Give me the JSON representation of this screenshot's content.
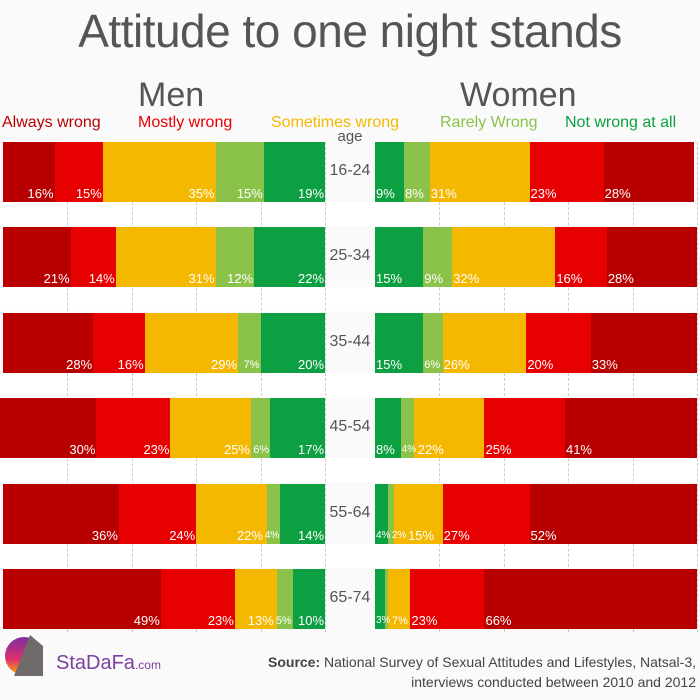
{
  "title": "Attitude to one night stands",
  "men_label": "Men",
  "women_label": "Women",
  "legend": [
    {
      "label": "Always wrong",
      "color": "#b80000"
    },
    {
      "label": "Mostly wrong",
      "color": "#e60000"
    },
    {
      "label": "Sometimes wrong",
      "color": "#f5b800"
    },
    {
      "label": "Rarely Wrong",
      "color": "#8bc34a"
    },
    {
      "label": "Not wrong at all",
      "color": "#0da042"
    }
  ],
  "age_header": "age",
  "logo": {
    "name": "StaDaFa",
    "suffix": ".com"
  },
  "source": {
    "label": "Source:",
    "line1": " National Survey of Sexual Attitudes and Lifestyles, Natsal-3,",
    "line2": "interviews conducted between 2010 and 2012"
  },
  "chart_data": {
    "type": "bar",
    "orientation": "horizontal",
    "stacked": true,
    "title": "Attitude to one night stands",
    "categories": [
      "16-24",
      "25-34",
      "35-44",
      "45-54",
      "55-64",
      "65-74"
    ],
    "series_order": [
      "Always wrong",
      "Mostly wrong",
      "Sometimes wrong",
      "Rarely Wrong",
      "Not wrong at all"
    ],
    "men": [
      [
        16,
        15,
        35,
        15,
        19
      ],
      [
        21,
        14,
        31,
        12,
        22
      ],
      [
        28,
        16,
        29,
        7,
        20
      ],
      [
        30,
        23,
        25,
        6,
        17
      ],
      [
        36,
        24,
        22,
        4,
        14
      ],
      [
        49,
        23,
        13,
        5,
        10
      ]
    ],
    "women": [
      [
        28,
        23,
        31,
        8,
        9
      ],
      [
        28,
        16,
        32,
        9,
        15
      ],
      [
        33,
        20,
        26,
        6,
        15
      ],
      [
        41,
        25,
        22,
        4,
        8
      ],
      [
        52,
        27,
        15,
        2,
        4
      ],
      [
        66,
        23,
        7,
        1,
        3
      ]
    ],
    "women_labels_shown": [
      [
        true,
        true,
        true,
        true,
        true
      ],
      [
        true,
        true,
        true,
        true,
        true
      ],
      [
        true,
        true,
        true,
        true,
        true
      ],
      [
        true,
        true,
        true,
        true,
        true
      ],
      [
        true,
        true,
        true,
        true,
        true
      ],
      [
        true,
        true,
        true,
        false,
        true
      ]
    ],
    "unit": "%",
    "xlim": [
      0,
      100
    ],
    "grid": true
  }
}
